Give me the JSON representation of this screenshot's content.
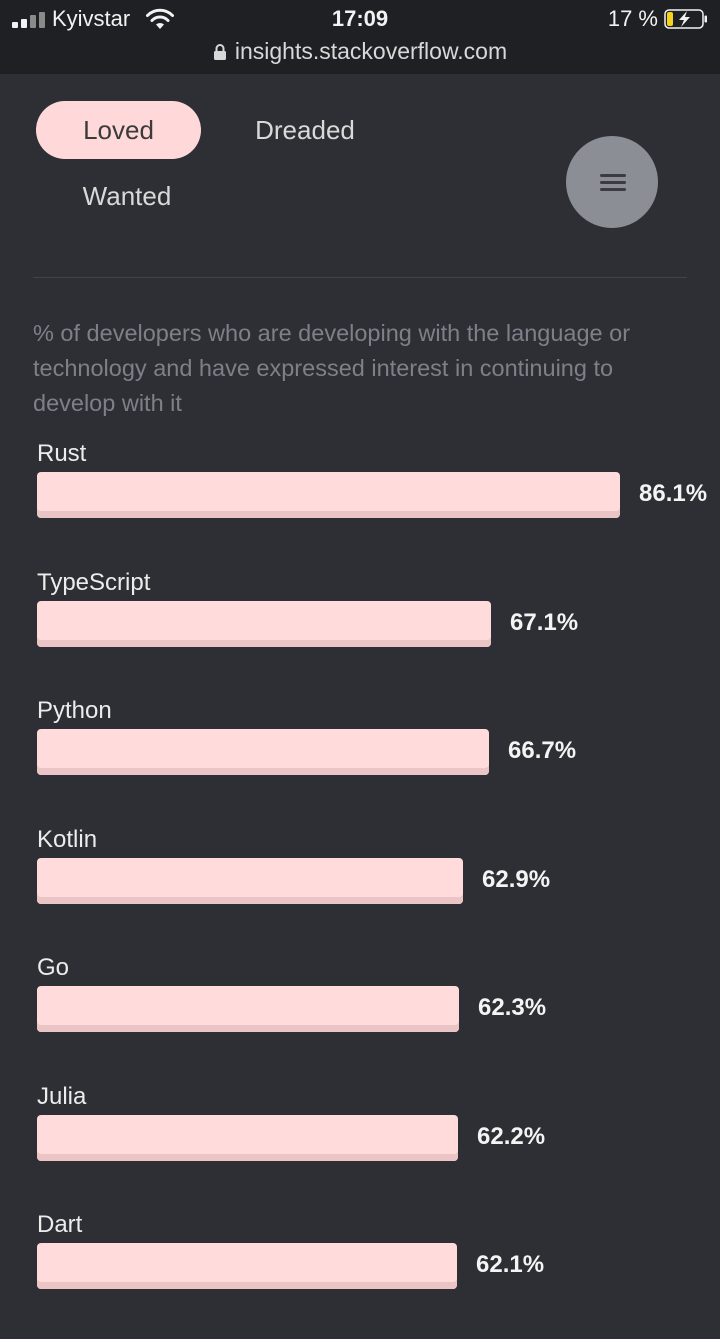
{
  "status_bar": {
    "carrier": "Kyivstar",
    "time": "17:09",
    "battery": "17 %",
    "url": "insights.stackoverflow.com"
  },
  "tabs": [
    {
      "label": "Loved",
      "active": true
    },
    {
      "label": "Dreaded",
      "active": false
    },
    {
      "label": "Wanted",
      "active": false
    }
  ],
  "menu_icon": "hamburger-icon",
  "description": "% of developers who are developing with the language or technology and have expressed interest in continuing to develop with it",
  "chart_data": {
    "type": "bar",
    "categories": [
      "Rust",
      "TypeScript",
      "Python",
      "Kotlin",
      "Go",
      "Julia",
      "Dart"
    ],
    "values": [
      86.1,
      67.1,
      66.7,
      62.9,
      62.3,
      62.2,
      62.1
    ],
    "value_labels": [
      "86.1%",
      "67.1%",
      "66.7%",
      "62.9%",
      "62.3%",
      "62.2%",
      "62.1%"
    ],
    "bar_color": "#ffdbdb"
  }
}
